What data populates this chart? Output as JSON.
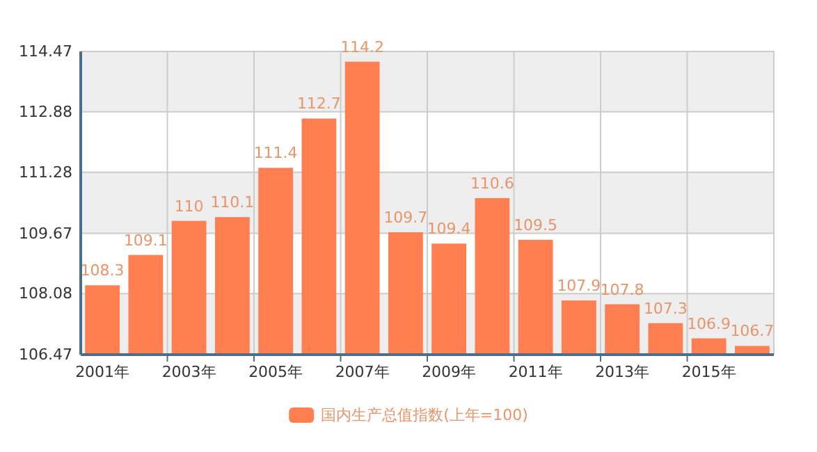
{
  "chart_data": {
    "type": "bar",
    "categories": [
      "2001年",
      null,
      "2003年",
      null,
      "2005年",
      null,
      "2007年",
      null,
      "2009年",
      null,
      "2011年",
      null,
      "2013年",
      null,
      "2015年",
      null
    ],
    "series": [
      {
        "name": "国内生产总值指数(上年=100)",
        "color": "#ff7f50",
        "values": [
          108.3,
          109.1,
          110,
          110.1,
          111.4,
          112.7,
          114.2,
          109.7,
          109.4,
          110.6,
          109.5,
          107.9,
          107.8,
          107.3,
          106.9,
          106.7
        ]
      }
    ],
    "ylim": [
      106.47,
      114.47
    ],
    "yticks": [
      106.47,
      108.08,
      109.67,
      111.28,
      112.88,
      114.47
    ],
    "grid": true,
    "legend": "bottom",
    "data_labels": true
  }
}
